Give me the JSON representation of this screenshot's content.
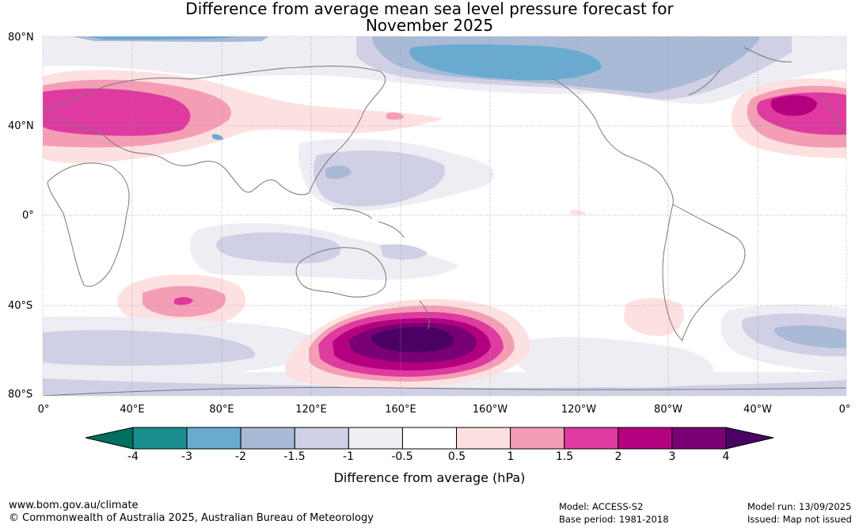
{
  "title_line1": "Difference from average mean sea level pressure forecast for",
  "title_line2": "November 2025",
  "lat_labels": [
    "80°N",
    "40°N",
    "0°",
    "40°S",
    "80°S"
  ],
  "lon_labels": [
    "0°",
    "40°E",
    "80°E",
    "120°E",
    "160°E",
    "160°W",
    "120°W",
    "80°W",
    "40°W",
    "0°"
  ],
  "colorbar": {
    "label": "Difference from average (hPa)",
    "ticks": [
      "-4",
      "-3",
      "-2",
      "-1.5",
      "-1",
      "-0.5",
      "0.5",
      "1",
      "1.5",
      "2",
      "3",
      "4"
    ],
    "colors": [
      "#1a8d8f",
      "#6aaad1",
      "#a9bad6",
      "#cfd0e5",
      "#efedf4",
      "#ffffff",
      "#fde1e1",
      "#f49eb6",
      "#de3aa0",
      "#b3007f",
      "#7a0075",
      "#4b0064"
    ],
    "low_extension_color": "#006e61",
    "high_extension_color": "#4b0064"
  },
  "footer": {
    "url": "www.bom.gov.au/climate",
    "copyright": "© Commonwealth of Australia 2025, Australian Bureau of Meteorology",
    "model": "Model: ACCESS-S2",
    "base_period": "Base period: 1981-2018",
    "model_run": "Model run: 13/09/2025",
    "issued": "Issued: Map not issued"
  }
}
